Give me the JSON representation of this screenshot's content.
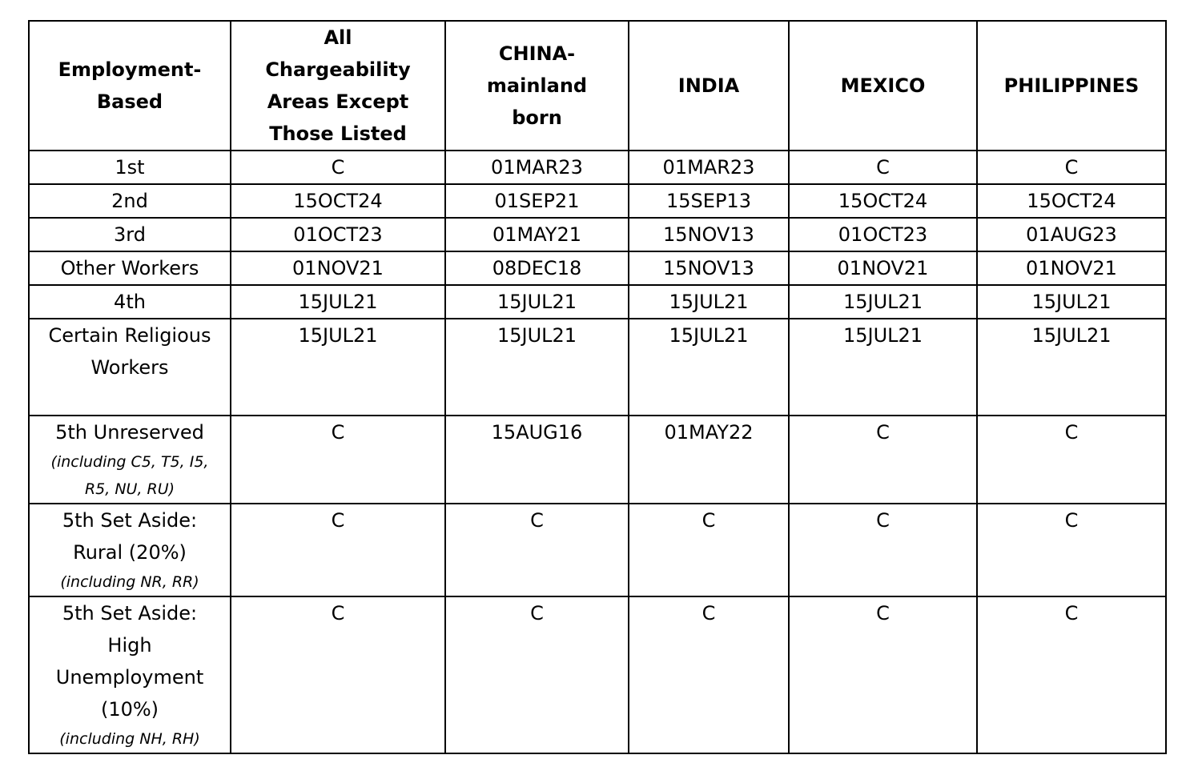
{
  "table": {
    "headers": [
      "Employment-Based",
      "All Chargeability Areas Except Those Listed",
      "CHINA-mainland born",
      "INDIA",
      "MEXICO",
      "PHILIPPINES"
    ],
    "rows": [
      {
        "category": "1st",
        "note": "",
        "values": [
          "C",
          "01MAR23",
          "01MAR23",
          "C",
          "C"
        ]
      },
      {
        "category": "2nd",
        "note": "",
        "values": [
          "15OCT24",
          "01SEP21",
          "15SEP13",
          "15OCT24",
          "15OCT24"
        ]
      },
      {
        "category": "3rd",
        "note": "",
        "values": [
          "01OCT23",
          "01MAY21",
          "15NOV13",
          "01OCT23",
          "01AUG23"
        ]
      },
      {
        "category": "Other Workers",
        "note": "",
        "values": [
          "01NOV21",
          "08DEC18",
          "15NOV13",
          "01NOV21",
          "01NOV21"
        ]
      },
      {
        "category": "4th",
        "note": "",
        "values": [
          "15JUL21",
          "15JUL21",
          "15JUL21",
          "15JUL21",
          "15JUL21"
        ]
      },
      {
        "category": "Certain Religious Workers",
        "note": "",
        "values": [
          "15JUL21",
          "15JUL21",
          "15JUL21",
          "15JUL21",
          "15JUL21"
        ]
      },
      {
        "category": "5th Unreserved",
        "note": "(including C5, T5, I5, R5, NU, RU)",
        "values": [
          "C",
          "15AUG16",
          "01MAY22",
          "C",
          "C"
        ]
      },
      {
        "category": "5th Set Aside: Rural (20%)",
        "note": "(including NR, RR)",
        "values": [
          "C",
          "C",
          "C",
          "C",
          "C"
        ]
      },
      {
        "category": "5th Set Aside: High Unemployment (10%)",
        "note": "(including NH, RH)",
        "values": [
          "C",
          "C",
          "C",
          "C",
          "C"
        ]
      }
    ]
  }
}
